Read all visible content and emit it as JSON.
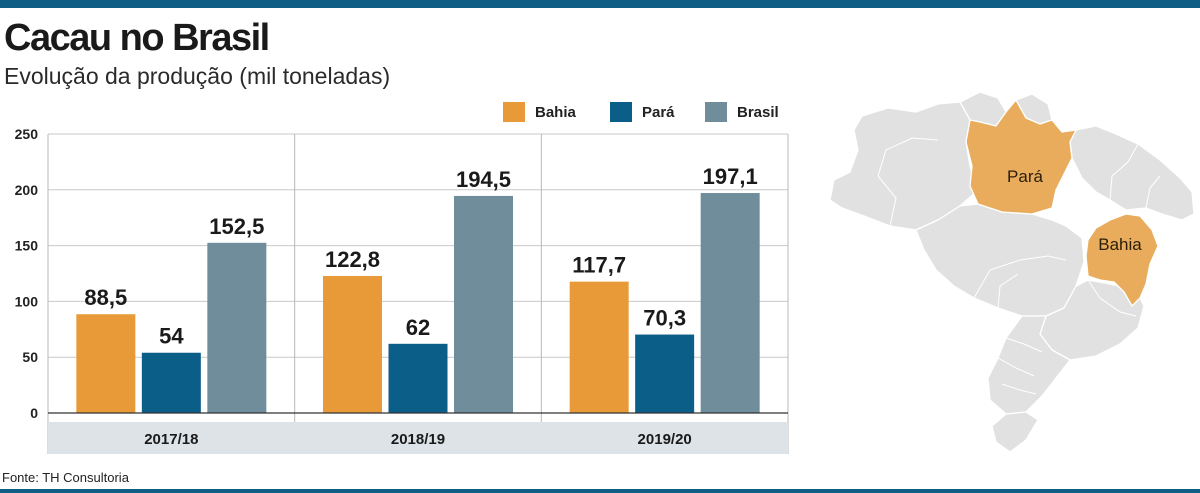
{
  "header": {
    "title": "Cacau no Brasil",
    "subtitle": "Evolução da produção (mil toneladas)"
  },
  "legend": [
    {
      "label": "Bahia",
      "color": "#e89a38"
    },
    {
      "label": "Pará",
      "color": "#0b5e88"
    },
    {
      "label": "Brasil",
      "color": "#6f8d9b"
    }
  ],
  "chart_data": {
    "type": "bar",
    "title": "Cacau no Brasil",
    "subtitle": "Evolução da produção (mil toneladas)",
    "xlabel": "",
    "ylabel": "",
    "categories": [
      "2017/18",
      "2018/19",
      "2019/20"
    ],
    "series": [
      {
        "name": "Bahia",
        "color": "#e89a38",
        "values": [
          88.5,
          122.8,
          117.7
        ],
        "labels": [
          "88,5",
          "122,8",
          "117,7"
        ]
      },
      {
        "name": "Pará",
        "color": "#0b5e88",
        "values": [
          54,
          62,
          70.3
        ],
        "labels": [
          "54",
          "62",
          "70,3"
        ]
      },
      {
        "name": "Brasil",
        "color": "#6f8d9b",
        "values": [
          152.5,
          194.5,
          197.1
        ],
        "labels": [
          "152,5",
          "194,5",
          "197,1"
        ]
      }
    ],
    "ylim": [
      0,
      250
    ],
    "yticks": [
      0,
      50,
      100,
      150,
      200,
      250
    ],
    "grid": true,
    "legend_position": "top-right"
  },
  "map": {
    "highlight_color": "#e8ac5c",
    "base_color": "#e1e1e1",
    "labels": [
      "Pará",
      "Bahia"
    ]
  },
  "footer": {
    "source": "Fonte: TH Consultoria"
  }
}
